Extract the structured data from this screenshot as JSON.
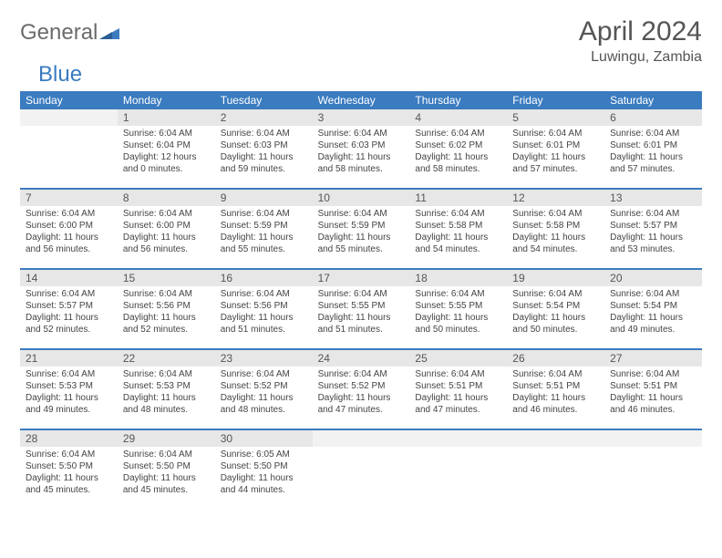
{
  "logo": {
    "text1": "General",
    "text2": "Blue"
  },
  "title": "April 2024",
  "location": "Luwingu, Zambia",
  "colors": {
    "header_bg": "#3b7bbf",
    "header_text": "#ffffff",
    "daynum_bg": "#e7e7e7",
    "text": "#444444",
    "title_text": "#555555"
  },
  "weekdays": [
    "Sunday",
    "Monday",
    "Tuesday",
    "Wednesday",
    "Thursday",
    "Friday",
    "Saturday"
  ],
  "weeks": [
    [
      null,
      {
        "d": "1",
        "sr": "Sunrise: 6:04 AM",
        "ss": "Sunset: 6:04 PM",
        "dl": "Daylight: 12 hours and 0 minutes."
      },
      {
        "d": "2",
        "sr": "Sunrise: 6:04 AM",
        "ss": "Sunset: 6:03 PM",
        "dl": "Daylight: 11 hours and 59 minutes."
      },
      {
        "d": "3",
        "sr": "Sunrise: 6:04 AM",
        "ss": "Sunset: 6:03 PM",
        "dl": "Daylight: 11 hours and 58 minutes."
      },
      {
        "d": "4",
        "sr": "Sunrise: 6:04 AM",
        "ss": "Sunset: 6:02 PM",
        "dl": "Daylight: 11 hours and 58 minutes."
      },
      {
        "d": "5",
        "sr": "Sunrise: 6:04 AM",
        "ss": "Sunset: 6:01 PM",
        "dl": "Daylight: 11 hours and 57 minutes."
      },
      {
        "d": "6",
        "sr": "Sunrise: 6:04 AM",
        "ss": "Sunset: 6:01 PM",
        "dl": "Daylight: 11 hours and 57 minutes."
      }
    ],
    [
      {
        "d": "7",
        "sr": "Sunrise: 6:04 AM",
        "ss": "Sunset: 6:00 PM",
        "dl": "Daylight: 11 hours and 56 minutes."
      },
      {
        "d": "8",
        "sr": "Sunrise: 6:04 AM",
        "ss": "Sunset: 6:00 PM",
        "dl": "Daylight: 11 hours and 56 minutes."
      },
      {
        "d": "9",
        "sr": "Sunrise: 6:04 AM",
        "ss": "Sunset: 5:59 PM",
        "dl": "Daylight: 11 hours and 55 minutes."
      },
      {
        "d": "10",
        "sr": "Sunrise: 6:04 AM",
        "ss": "Sunset: 5:59 PM",
        "dl": "Daylight: 11 hours and 55 minutes."
      },
      {
        "d": "11",
        "sr": "Sunrise: 6:04 AM",
        "ss": "Sunset: 5:58 PM",
        "dl": "Daylight: 11 hours and 54 minutes."
      },
      {
        "d": "12",
        "sr": "Sunrise: 6:04 AM",
        "ss": "Sunset: 5:58 PM",
        "dl": "Daylight: 11 hours and 54 minutes."
      },
      {
        "d": "13",
        "sr": "Sunrise: 6:04 AM",
        "ss": "Sunset: 5:57 PM",
        "dl": "Daylight: 11 hours and 53 minutes."
      }
    ],
    [
      {
        "d": "14",
        "sr": "Sunrise: 6:04 AM",
        "ss": "Sunset: 5:57 PM",
        "dl": "Daylight: 11 hours and 52 minutes."
      },
      {
        "d": "15",
        "sr": "Sunrise: 6:04 AM",
        "ss": "Sunset: 5:56 PM",
        "dl": "Daylight: 11 hours and 52 minutes."
      },
      {
        "d": "16",
        "sr": "Sunrise: 6:04 AM",
        "ss": "Sunset: 5:56 PM",
        "dl": "Daylight: 11 hours and 51 minutes."
      },
      {
        "d": "17",
        "sr": "Sunrise: 6:04 AM",
        "ss": "Sunset: 5:55 PM",
        "dl": "Daylight: 11 hours and 51 minutes."
      },
      {
        "d": "18",
        "sr": "Sunrise: 6:04 AM",
        "ss": "Sunset: 5:55 PM",
        "dl": "Daylight: 11 hours and 50 minutes."
      },
      {
        "d": "19",
        "sr": "Sunrise: 6:04 AM",
        "ss": "Sunset: 5:54 PM",
        "dl": "Daylight: 11 hours and 50 minutes."
      },
      {
        "d": "20",
        "sr": "Sunrise: 6:04 AM",
        "ss": "Sunset: 5:54 PM",
        "dl": "Daylight: 11 hours and 49 minutes."
      }
    ],
    [
      {
        "d": "21",
        "sr": "Sunrise: 6:04 AM",
        "ss": "Sunset: 5:53 PM",
        "dl": "Daylight: 11 hours and 49 minutes."
      },
      {
        "d": "22",
        "sr": "Sunrise: 6:04 AM",
        "ss": "Sunset: 5:53 PM",
        "dl": "Daylight: 11 hours and 48 minutes."
      },
      {
        "d": "23",
        "sr": "Sunrise: 6:04 AM",
        "ss": "Sunset: 5:52 PM",
        "dl": "Daylight: 11 hours and 48 minutes."
      },
      {
        "d": "24",
        "sr": "Sunrise: 6:04 AM",
        "ss": "Sunset: 5:52 PM",
        "dl": "Daylight: 11 hours and 47 minutes."
      },
      {
        "d": "25",
        "sr": "Sunrise: 6:04 AM",
        "ss": "Sunset: 5:51 PM",
        "dl": "Daylight: 11 hours and 47 minutes."
      },
      {
        "d": "26",
        "sr": "Sunrise: 6:04 AM",
        "ss": "Sunset: 5:51 PM",
        "dl": "Daylight: 11 hours and 46 minutes."
      },
      {
        "d": "27",
        "sr": "Sunrise: 6:04 AM",
        "ss": "Sunset: 5:51 PM",
        "dl": "Daylight: 11 hours and 46 minutes."
      }
    ],
    [
      {
        "d": "28",
        "sr": "Sunrise: 6:04 AM",
        "ss": "Sunset: 5:50 PM",
        "dl": "Daylight: 11 hours and 45 minutes."
      },
      {
        "d": "29",
        "sr": "Sunrise: 6:04 AM",
        "ss": "Sunset: 5:50 PM",
        "dl": "Daylight: 11 hours and 45 minutes."
      },
      {
        "d": "30",
        "sr": "Sunrise: 6:05 AM",
        "ss": "Sunset: 5:50 PM",
        "dl": "Daylight: 11 hours and 44 minutes."
      },
      null,
      null,
      null,
      null
    ]
  ]
}
